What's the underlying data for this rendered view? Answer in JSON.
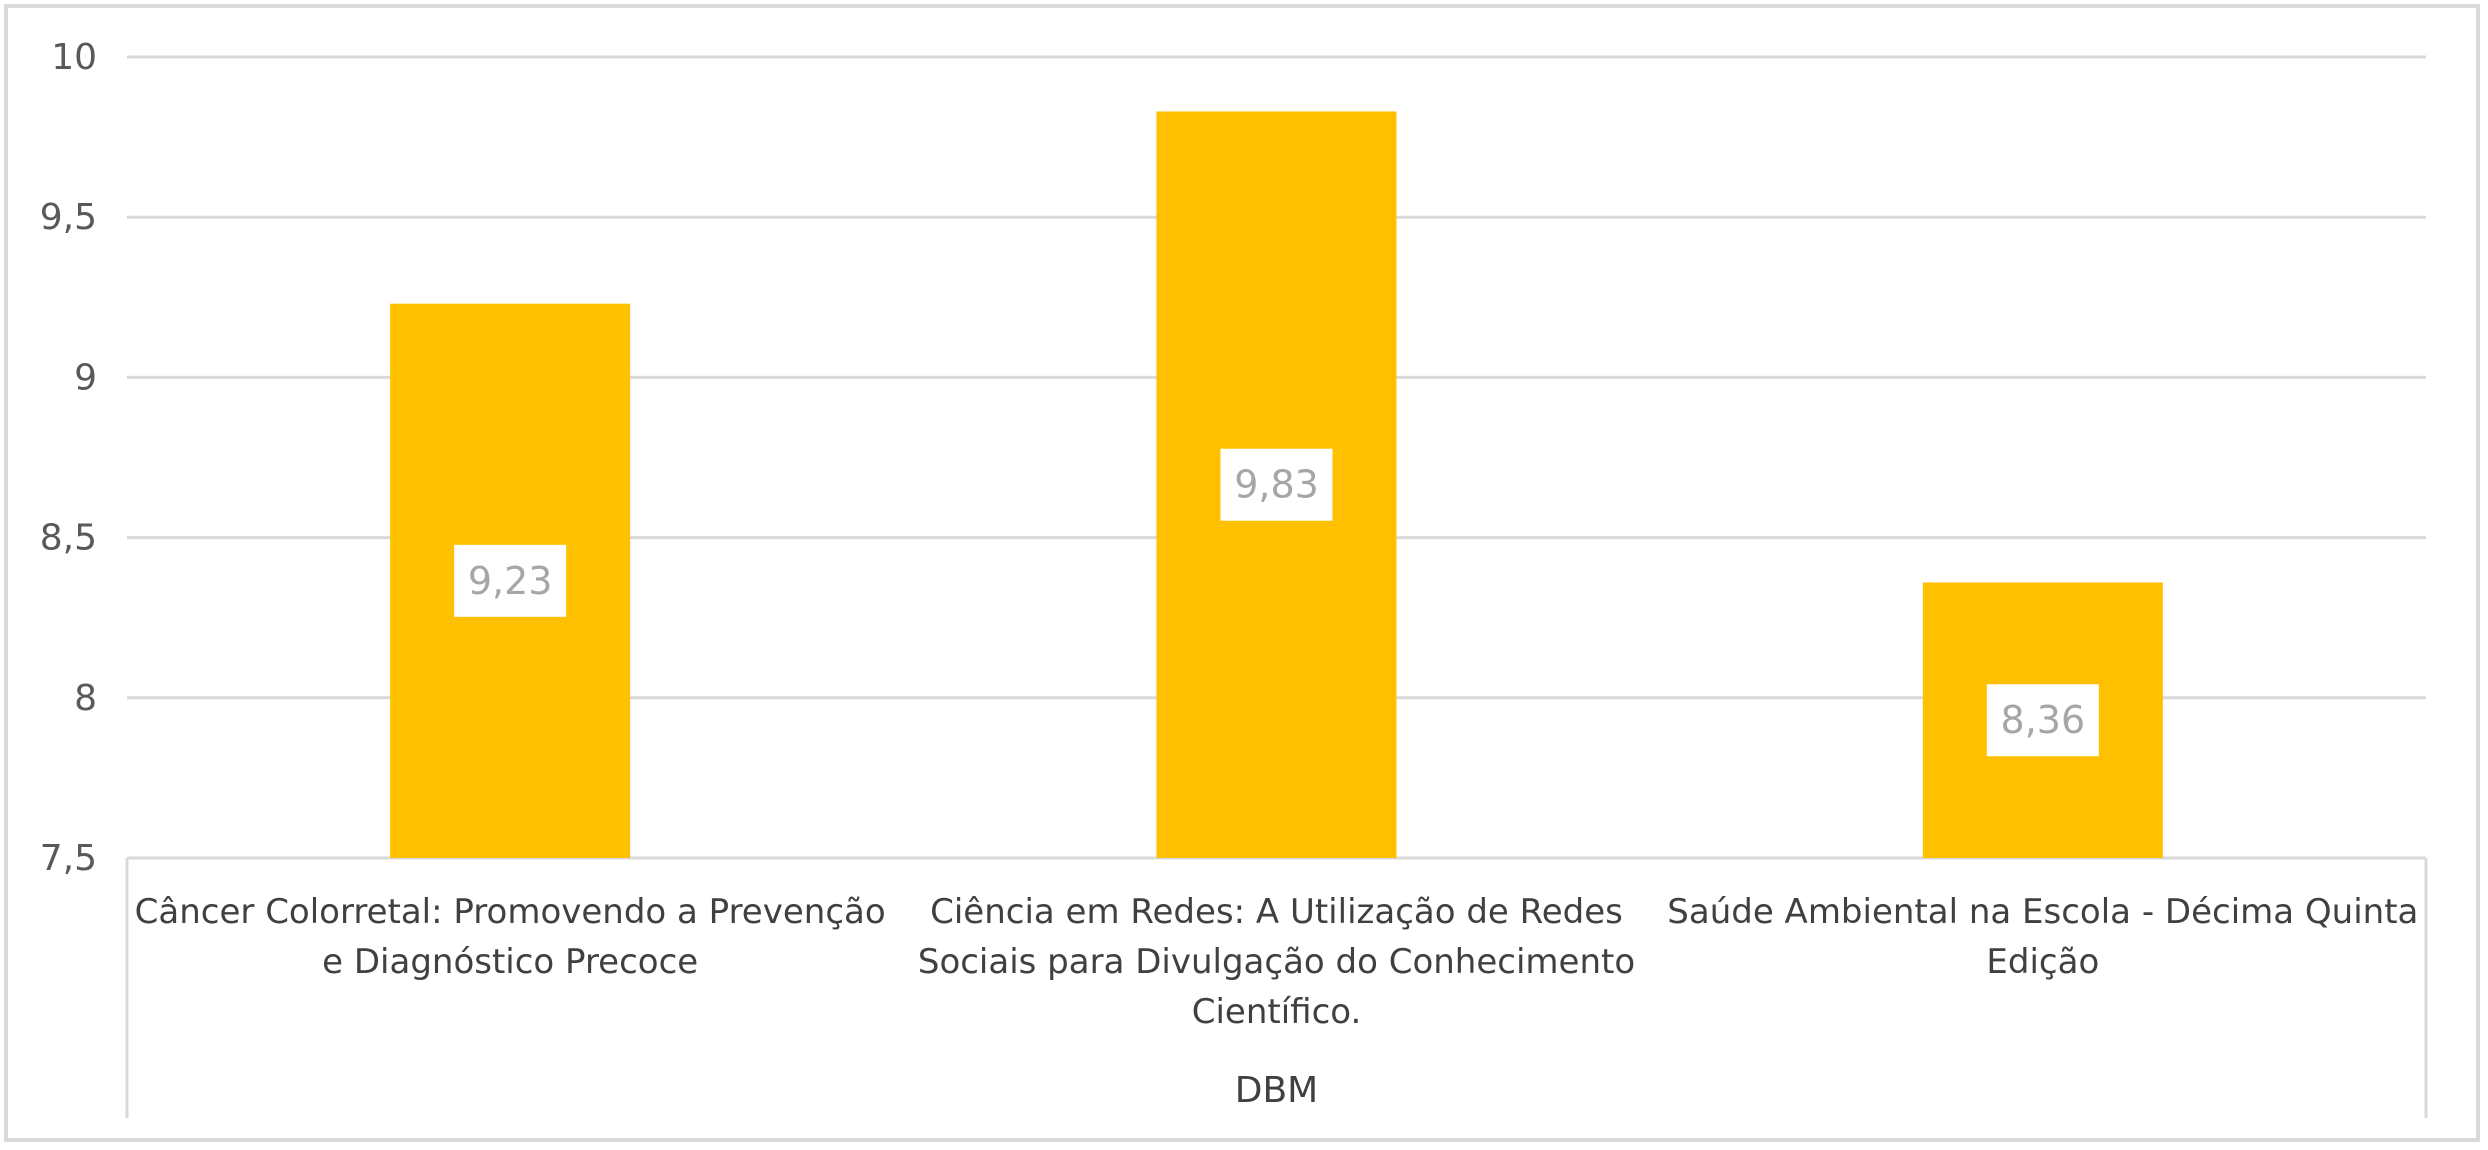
{
  "chart_data": {
    "type": "bar",
    "group_label": "DBM",
    "categories": [
      [
        "Câncer Colorretal: Promovendo a Prevenção",
        "e Diagnóstico Precoce"
      ],
      [
        "Ciência em Redes: A Utilização de Redes",
        "Sociais para Divulgação do Conhecimento",
        "Científico."
      ],
      [
        "Saúde Ambiental na Escola - Décima Quinta",
        "Edição"
      ]
    ],
    "values": [
      9.23,
      9.83,
      8.36
    ],
    "data_labels": [
      "9,23",
      "9,83",
      "8,36"
    ],
    "ylim": [
      7.5,
      10
    ],
    "y_ticks": [
      7.5,
      8,
      8.5,
      9,
      9.5,
      10
    ],
    "y_tick_labels": [
      "7,5",
      "8",
      "8,5",
      "9",
      "9,5",
      "10"
    ],
    "grid": true,
    "colors": {
      "bar": "#ffc000",
      "grid": "#d9d9d9",
      "label_box": "#ffffff"
    }
  }
}
